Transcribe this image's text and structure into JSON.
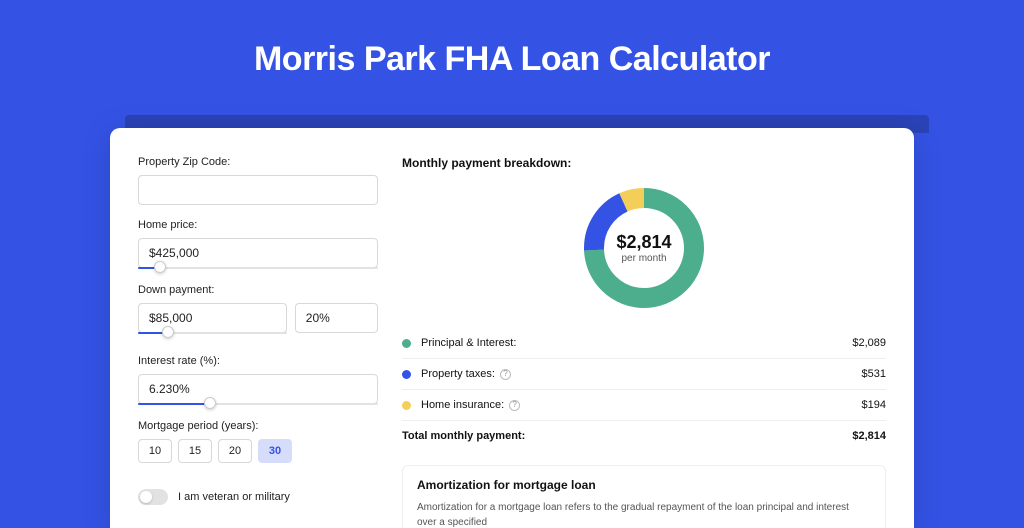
{
  "page": {
    "title": "Morris Park FHA Loan Calculator",
    "background_color": "#3453e5"
  },
  "form": {
    "zip": {
      "label": "Property Zip Code:",
      "value": ""
    },
    "home_price": {
      "label": "Home price:",
      "value": "$425,000",
      "slider_percent": 9
    },
    "down_payment": {
      "label": "Down payment:",
      "amount_value": "$85,000",
      "pct_value": "20%",
      "slider_percent": 20
    },
    "interest_rate": {
      "label": "Interest rate (%):",
      "value": "6.230%",
      "slider_percent": 30
    },
    "mortgage_period": {
      "label": "Mortgage period (years):",
      "options": [
        "10",
        "15",
        "20",
        "30"
      ],
      "selected_index": 3
    },
    "veteran": {
      "label": "I am veteran or military",
      "checked": false
    }
  },
  "breakdown": {
    "title": "Monthly payment breakdown:",
    "donut": {
      "center_value": "$2,814",
      "center_sub": "per month",
      "stroke_width": 20,
      "bg_color": "#ffffff",
      "slices": [
        {
          "color": "#4cae8c",
          "percent": 74.2
        },
        {
          "color": "#3453e5",
          "percent": 18.9
        },
        {
          "color": "#f3cf5a",
          "percent": 6.9
        }
      ]
    },
    "items": [
      {
        "dot_color": "#4cae8c",
        "label": "Principal & Interest:",
        "info": false,
        "value": "$2,089"
      },
      {
        "dot_color": "#3453e5",
        "label": "Property taxes:",
        "info": true,
        "value": "$531"
      },
      {
        "dot_color": "#f3cf5a",
        "label": "Home insurance:",
        "info": true,
        "value": "$194"
      }
    ],
    "total": {
      "label": "Total monthly payment:",
      "value": "$2,814"
    }
  },
  "amortization": {
    "title": "Amortization for mortgage loan",
    "body": "Amortization for a mortgage loan refers to the gradual repayment of the loan principal and interest over a specified"
  }
}
